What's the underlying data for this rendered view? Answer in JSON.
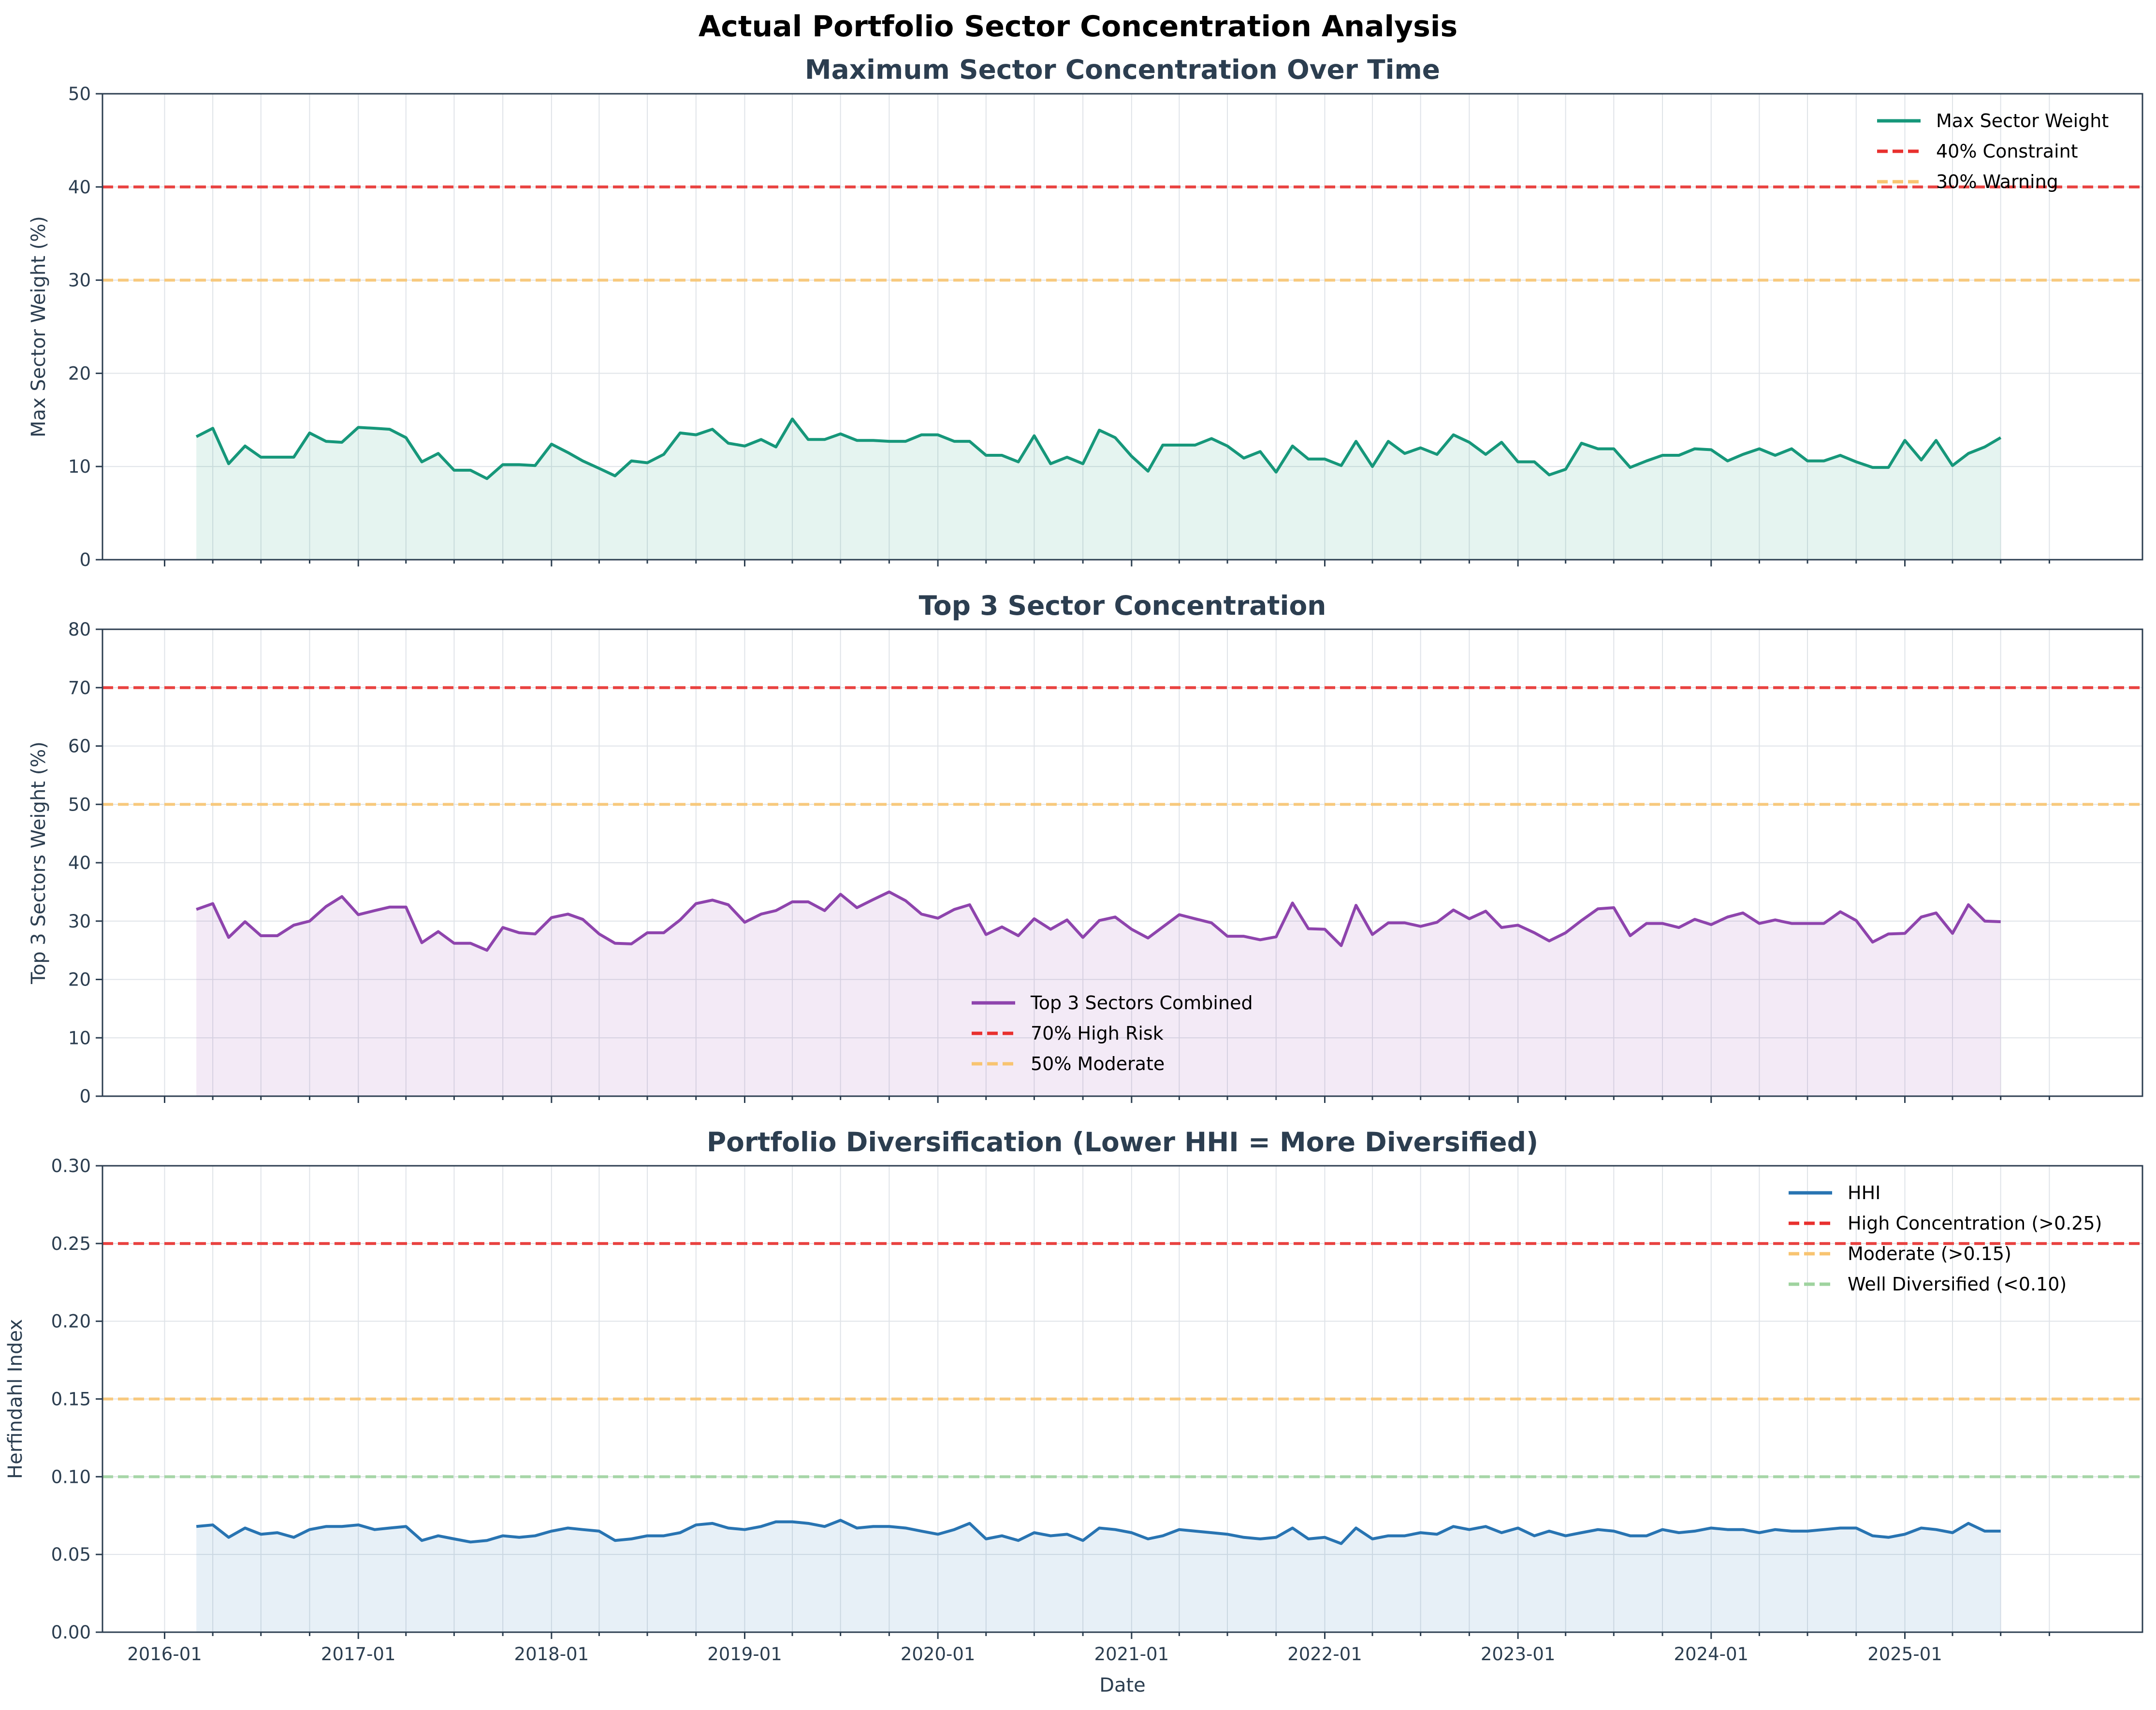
{
  "figure": {
    "suptitle": "Actual Portfolio Sector Concentration Analysis",
    "x_axis_label": "Date",
    "x_ticks": [
      "2016-01",
      "2017-01",
      "2018-01",
      "2019-01",
      "2020-01",
      "2021-01",
      "2022-01",
      "2023-01",
      "2024-01",
      "2025-01"
    ]
  },
  "colors": {
    "max_weight": "#16977a",
    "top3": "#8e44ad",
    "hhi": "#2874b2",
    "red": "#e8302e",
    "orange": "#f8c471",
    "green": "#9fd39f",
    "title": "#2c3e50",
    "axis": "#2c3e50"
  },
  "chart_data": [
    {
      "type": "area",
      "title": "Maximum Sector Concentration Over Time",
      "ylabel": "Max Sector Weight (%)",
      "xlabel": "",
      "xlim": [
        "2015-10-16",
        "2026-03-10"
      ],
      "ylim": [
        0,
        50
      ],
      "yticks": [
        0,
        10,
        20,
        30,
        40,
        50
      ],
      "ytick_labels": [
        "0",
        "10",
        "20",
        "30",
        "40",
        "50"
      ],
      "grid": true,
      "legend_position": "top-right",
      "start": "2016-03",
      "frequency": "monthly",
      "series": [
        {
          "name": "Max Sector Weight",
          "color": "#16977a",
          "values": [
            13.2,
            14.1,
            10.3,
            12.2,
            11.0,
            11.0,
            11.0,
            13.6,
            12.7,
            12.6,
            14.2,
            14.1,
            14.0,
            13.1,
            10.5,
            11.4,
            9.6,
            9.6,
            8.7,
            10.2,
            10.2,
            10.1,
            12.4,
            11.5,
            10.6,
            9.8,
            9.0,
            10.6,
            10.4,
            11.3,
            13.6,
            13.4,
            14.0,
            12.5,
            12.2,
            12.9,
            12.1,
            15.1,
            12.9,
            12.9,
            13.5,
            12.8,
            12.8,
            12.7,
            12.7,
            13.4,
            13.4,
            12.7,
            12.7,
            11.2,
            11.2,
            10.5,
            13.3,
            10.3,
            11.0,
            10.3,
            13.9,
            13.1,
            11.1,
            9.5,
            12.3,
            12.3,
            12.3,
            13.0,
            12.2,
            10.9,
            11.6,
            9.4,
            12.2,
            10.8,
            10.8,
            10.1,
            12.7,
            10.0,
            12.7,
            11.4,
            12.0,
            11.3,
            13.4,
            12.6,
            11.3,
            12.6,
            10.5,
            10.5,
            9.1,
            9.7,
            12.5,
            11.9,
            11.9,
            9.9,
            10.6,
            11.2,
            11.2,
            11.9,
            11.8,
            10.6,
            11.3,
            11.9,
            11.2,
            11.9,
            10.6,
            10.6,
            11.2,
            10.5,
            9.9,
            9.9,
            12.8,
            10.7,
            12.8,
            10.1,
            11.4,
            12.1,
            13.1
          ]
        }
      ],
      "reference_lines": [
        {
          "name": "40% Constraint",
          "value": 40,
          "color": "#e8302e"
        },
        {
          "name": "30% Warning",
          "value": 30,
          "color": "#f8c471"
        }
      ]
    },
    {
      "type": "area",
      "title": "Top 3 Sector Concentration",
      "ylabel": "Top 3 Sectors Weight (%)",
      "xlabel": "",
      "xlim": [
        "2015-10-16",
        "2026-03-10"
      ],
      "ylim": [
        0,
        80
      ],
      "yticks": [
        0,
        10,
        20,
        30,
        40,
        50,
        60,
        70,
        80
      ],
      "ytick_labels": [
        "0",
        "10",
        "20",
        "30",
        "40",
        "50",
        "60",
        "70",
        "80"
      ],
      "grid": true,
      "legend_position": "bottom-center",
      "start": "2016-03",
      "frequency": "monthly",
      "series": [
        {
          "name": "Top 3 Sectors Combined",
          "color": "#8e44ad",
          "values": [
            32.0,
            33.0,
            27.2,
            29.9,
            27.5,
            27.5,
            29.3,
            30.0,
            32.5,
            34.2,
            31.1,
            31.8,
            32.4,
            32.4,
            26.3,
            28.2,
            26.2,
            26.2,
            25.0,
            28.9,
            28.0,
            27.8,
            30.6,
            31.2,
            30.3,
            27.8,
            26.2,
            26.1,
            28.0,
            28.0,
            30.2,
            33.0,
            33.6,
            32.8,
            29.8,
            31.2,
            31.8,
            33.3,
            33.3,
            31.8,
            34.6,
            32.3,
            33.7,
            35.0,
            33.5,
            31.2,
            30.5,
            32.0,
            32.8,
            27.7,
            29.0,
            27.5,
            30.4,
            28.6,
            30.2,
            27.2,
            30.1,
            30.7,
            28.6,
            27.1,
            29.0,
            31.1,
            30.4,
            29.7,
            27.4,
            27.4,
            26.8,
            27.3,
            33.1,
            28.7,
            28.6,
            25.8,
            32.7,
            27.7,
            29.7,
            29.7,
            29.1,
            29.8,
            31.9,
            30.4,
            31.7,
            28.9,
            29.3,
            28.0,
            26.6,
            28.0,
            30.1,
            32.1,
            32.3,
            27.5,
            29.6,
            29.6,
            28.9,
            30.3,
            29.4,
            30.7,
            31.4,
            29.6,
            30.2,
            29.6,
            29.6,
            29.6,
            31.6,
            30.1,
            26.4,
            27.8,
            27.9,
            30.7,
            31.4,
            27.9,
            32.8,
            30.0,
            29.9
          ]
        }
      ],
      "reference_lines": [
        {
          "name": "70% High Risk",
          "value": 70,
          "color": "#e8302e"
        },
        {
          "name": "50% Moderate",
          "value": 50,
          "color": "#f8c471"
        }
      ]
    },
    {
      "type": "area",
      "title": "Portfolio Diversification (Lower HHI = More Diversified)",
      "ylabel": "Herfindahl Index",
      "xlabel": "Date",
      "xlim": [
        "2015-10-16",
        "2026-03-10"
      ],
      "ylim": [
        0,
        0.3
      ],
      "yticks": [
        0,
        0.05,
        0.1,
        0.15,
        0.2,
        0.25,
        0.3
      ],
      "ytick_labels": [
        "0.00",
        "0.05",
        "0.10",
        "0.15",
        "0.20",
        "0.25",
        "0.30"
      ],
      "grid": true,
      "legend_position": "top-right",
      "start": "2016-03",
      "frequency": "monthly",
      "series": [
        {
          "name": "HHI",
          "color": "#2874b2",
          "values": [
            0.068,
            0.069,
            0.061,
            0.067,
            0.063,
            0.064,
            0.061,
            0.066,
            0.068,
            0.068,
            0.069,
            0.066,
            0.067,
            0.068,
            0.059,
            0.062,
            0.06,
            0.058,
            0.059,
            0.062,
            0.061,
            0.062,
            0.065,
            0.067,
            0.066,
            0.065,
            0.059,
            0.06,
            0.062,
            0.062,
            0.064,
            0.069,
            0.07,
            0.067,
            0.066,
            0.068,
            0.071,
            0.071,
            0.07,
            0.068,
            0.072,
            0.067,
            0.068,
            0.068,
            0.067,
            0.065,
            0.063,
            0.066,
            0.07,
            0.06,
            0.062,
            0.059,
            0.064,
            0.062,
            0.063,
            0.059,
            0.067,
            0.066,
            0.064,
            0.06,
            0.062,
            0.066,
            0.065,
            0.064,
            0.063,
            0.061,
            0.06,
            0.061,
            0.067,
            0.06,
            0.061,
            0.057,
            0.067,
            0.06,
            0.062,
            0.062,
            0.064,
            0.063,
            0.068,
            0.066,
            0.068,
            0.064,
            0.067,
            0.062,
            0.065,
            0.062,
            0.064,
            0.066,
            0.065,
            0.062,
            0.062,
            0.066,
            0.064,
            0.065,
            0.067,
            0.066,
            0.066,
            0.064,
            0.066,
            0.065,
            0.065,
            0.066,
            0.067,
            0.067,
            0.062,
            0.061,
            0.063,
            0.067,
            0.066,
            0.064,
            0.07,
            0.065,
            0.065
          ]
        }
      ],
      "reference_lines": [
        {
          "name": "High Concentration (>0.25)",
          "value": 0.25,
          "color": "#e8302e"
        },
        {
          "name": "Moderate (>0.15)",
          "value": 0.15,
          "color": "#f8c471"
        },
        {
          "name": "Well Diversified (<0.10)",
          "value": 0.1,
          "color": "#9fd39f"
        }
      ]
    }
  ]
}
